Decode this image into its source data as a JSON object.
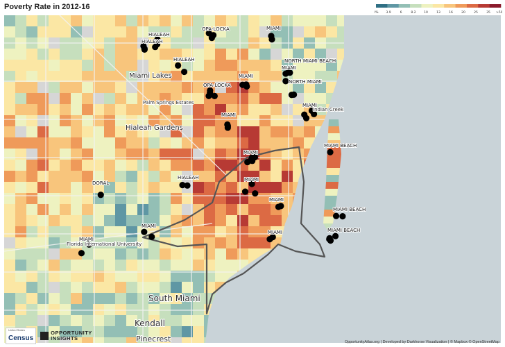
{
  "title": "Poverty Rate in 2012-16",
  "legend": {
    "ticks": [
      "0%",
      "3.9",
      "6",
      "8.2",
      "10",
      "13",
      "16",
      "20",
      "25",
      "35",
      ">50%"
    ],
    "colors": [
      "#2f6f84",
      "#5f97a4",
      "#93bfb5",
      "#c6dfbd",
      "#eef2c0",
      "#fbe7a4",
      "#f8c57c",
      "#ef9a5a",
      "#dc6a44",
      "#b73a34",
      "#8a1a2c"
    ]
  },
  "map": {
    "places": [
      {
        "name": "HIALEAH",
        "dots": 3
      },
      {
        "name": "HIALEAH",
        "dots": 3
      },
      {
        "name": "HIALEAH",
        "dots": 2
      },
      {
        "name": "HIALEAH",
        "dots": 2
      },
      {
        "name": "OPA-LOCKA",
        "dots": 3
      },
      {
        "name": "OPA-LOCKA",
        "dots": 4
      },
      {
        "name": "MIAMI",
        "dots": 2
      },
      {
        "name": "MIAMI",
        "dots": 3
      },
      {
        "name": "MIAMI",
        "dots": 3
      },
      {
        "name": "MIAMI",
        "dots": 2
      },
      {
        "name": "MIAMI",
        "dots": 4
      },
      {
        "name": "MIAMI",
        "dots": 6
      },
      {
        "name": "MIAMI",
        "dots": 3
      },
      {
        "name": "MIAMI",
        "dots": 2
      },
      {
        "name": "MIAMI",
        "dots": 2
      },
      {
        "name": "MIAMI",
        "dots": 2
      },
      {
        "name": "MIAMI",
        "dots": 2
      },
      {
        "name": "NORTH MIAMI BEACH",
        "dots": 2
      },
      {
        "name": "NORTH MIAMI",
        "dots": 2
      },
      {
        "name": "MIAMI BEACH",
        "dots": 1
      },
      {
        "name": "MIAMI BEACH",
        "dots": 2
      },
      {
        "name": "MIAMI BEACH",
        "dots": 4
      },
      {
        "name": "DORAL",
        "dots": 1
      }
    ],
    "area_labels": [
      "Miami Lakes",
      "Palm Springs Estates",
      "Hialeah Gardens",
      "Indian Creek",
      "Florida International University",
      "South Miami",
      "Kendall",
      "Pinecrest"
    ],
    "map_colors": {
      "water": "#c9d3d8",
      "road": "#f2f2f2",
      "boundary": "#555555",
      "dot": "#000000",
      "neutral": "#d6d6d6"
    }
  },
  "logos": {
    "census_small": "United States",
    "census_big": "Census",
    "oi_line1": "OPPORTUNITY",
    "oi_line2": "INSIGHTS"
  },
  "credits": "OpportunityAtlas.org | Developed by Darkhorse Visualization | © Mapbox © OpenStreetMap"
}
